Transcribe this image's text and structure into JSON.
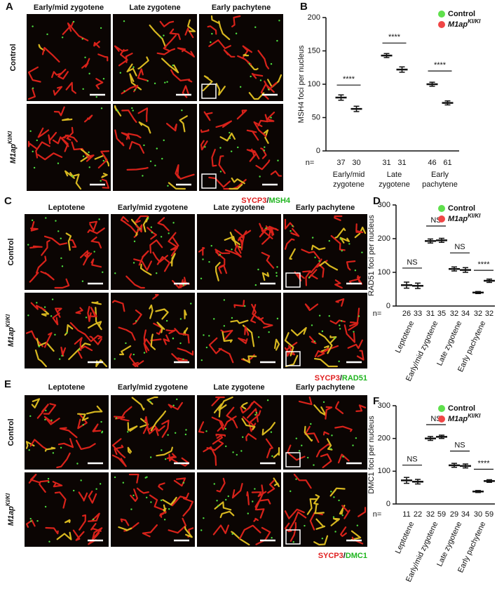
{
  "figure": {
    "A": {
      "label": "A",
      "columns": [
        "Early/mid zygotene",
        "Late zygotene",
        "Early pachytene"
      ],
      "rows": [
        {
          "text": "Control"
        },
        {
          "text": "M1ap",
          "sup": "KI/KI"
        }
      ],
      "stain": [
        "SYCP3",
        "/",
        "MSH4"
      ]
    },
    "C": {
      "label": "C",
      "columns": [
        "Leptotene",
        "Early/mid zygotene",
        "Late zygotene",
        "Early pachytene"
      ],
      "rows": [
        {
          "text": "Control"
        },
        {
          "text": "M1ap",
          "sup": "KI/KI"
        }
      ],
      "stain": [
        "SYCP3",
        "/",
        "RAD51"
      ]
    },
    "E": {
      "label": "E",
      "columns": [
        "Leptotene",
        "Early/mid zygotene",
        "Late zygotene",
        "Early pachytene"
      ],
      "rows": [
        {
          "text": "Control"
        },
        {
          "text": "M1ap",
          "sup": "KI/KI"
        }
      ],
      "stain": [
        "SYCP3",
        "/",
        "DMC1"
      ]
    }
  },
  "chart_data": [
    {
      "type": "dot-plot",
      "panel": "B",
      "ylabel": "MSH4 foci per nucleus",
      "categories": [
        [
          "Early/mid",
          "zygotene"
        ],
        [
          "Late",
          "zygotene"
        ],
        [
          "Early",
          "pachytene"
        ]
      ],
      "n_label": "n=",
      "significance": [
        "****",
        "****",
        "****"
      ],
      "series": [
        {
          "name": "Control",
          "color": "#5fe04c",
          "values": [
            80,
            143,
            100
          ],
          "errors": [
            4,
            3,
            3
          ],
          "n": [
            37,
            31,
            46
          ]
        },
        {
          "name": "M1ap",
          "name_superscript": "KI/KI",
          "color": "#f04646",
          "values": [
            63,
            122,
            72
          ],
          "errors": [
            4,
            4,
            3
          ],
          "n": [
            30,
            31,
            61
          ]
        }
      ],
      "ylim": [
        0,
        200
      ],
      "yticks": [
        0,
        50,
        100,
        150,
        200
      ],
      "legend": "top-right"
    },
    {
      "type": "dot-plot",
      "panel": "D",
      "ylabel": "RAD51 foci per nucleus",
      "categories": [
        "Leptotene",
        "Early/mid zygotene",
        "Late zygotene",
        "Early pachytene"
      ],
      "n_label": "n=",
      "significance": [
        "NS",
        "NS",
        "NS",
        "****"
      ],
      "series": [
        {
          "name": "Control",
          "color": "#5fe04c",
          "values": [
            62,
            193,
            110,
            40
          ],
          "errors": [
            9,
            6,
            6,
            3
          ],
          "n": [
            26,
            31,
            32,
            32
          ]
        },
        {
          "name": "M1ap",
          "name_superscript": "KI/KI",
          "color": "#f04646",
          "values": [
            60,
            195,
            107,
            75
          ],
          "errors": [
            8,
            6,
            7,
            5
          ],
          "n": [
            33,
            35,
            34,
            32
          ]
        }
      ],
      "ylim": [
        0,
        300
      ],
      "yticks": [
        0,
        100,
        200,
        300
      ],
      "legend": "top-right"
    },
    {
      "type": "dot-plot",
      "panel": "F",
      "ylabel": "DMC1 foci per nucleus",
      "categories": [
        "Leptotene",
        "Early/mid zygotene",
        "Late zygotene",
        "Early pachytene"
      ],
      "n_label": "n=",
      "significance": [
        "NS",
        "NS",
        "NS",
        "****"
      ],
      "series": [
        {
          "name": "Control",
          "color": "#5fe04c",
          "values": [
            72,
            200,
            118,
            38
          ],
          "errors": [
            9,
            6,
            6,
            3
          ],
          "n": [
            11,
            32,
            29,
            30
          ]
        },
        {
          "name": "M1ap",
          "name_superscript": "KI/KI",
          "color": "#f04646",
          "values": [
            68,
            205,
            116,
            70
          ],
          "errors": [
            7,
            5,
            6,
            4
          ],
          "n": [
            22,
            59,
            34,
            59
          ]
        }
      ],
      "ylim": [
        0,
        300
      ],
      "yticks": [
        0,
        100,
        200,
        300
      ],
      "legend": "top-right"
    }
  ]
}
